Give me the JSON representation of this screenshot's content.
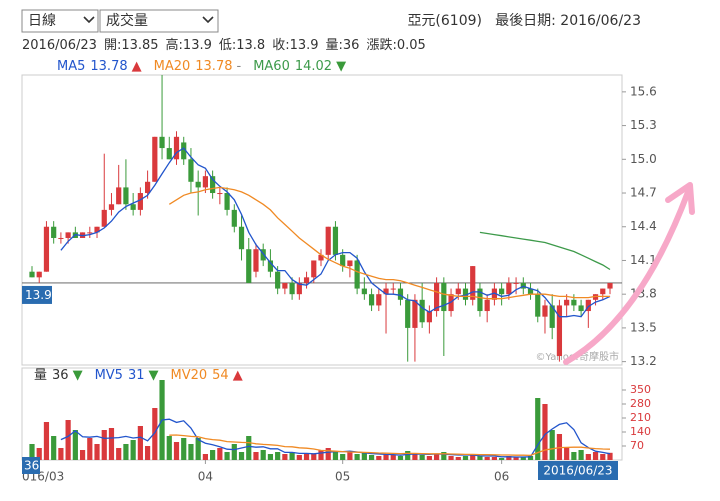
{
  "toolbar": {
    "period": "日線",
    "indicator": "成交量",
    "stock": "亞元(6109)",
    "last_date": "最後日期: 2016/06/23"
  },
  "info": {
    "date": "2016/06/23",
    "items": [
      "開:13.85",
      "高:13.9",
      "低:13.8",
      "收:13.9",
      "量:36",
      "漲跌:0.05"
    ]
  },
  "chart_data": [
    {
      "type": "candlestick",
      "up_color": "#d9393c",
      "down_color": "#3a9a3a",
      "ylim": [
        13.17,
        15.75
      ],
      "yticks": [
        15.6,
        15.3,
        {
          "value": 15,
          "label": "15.0"
        },
        14.7,
        14.4,
        14.1,
        13.8,
        13.5,
        13.2
      ],
      "price_line": 13.9,
      "watermark": "©Yahoo!奇摩股市",
      "open": [
        14.0,
        13.95,
        14.0,
        14.4,
        14.3,
        14.3,
        14.35,
        14.3,
        14.35,
        14.35,
        14.4,
        14.55,
        14.6,
        14.75,
        14.6,
        14.55,
        14.7,
        14.8,
        15.2,
        15.1,
        15.0,
        15.15,
        15.0,
        14.8,
        14.75,
        14.85,
        14.7,
        14.7,
        14.55,
        14.4,
        14.2,
        14.0,
        14.2,
        14.1,
        14.0,
        13.85,
        13.9,
        13.8,
        13.9,
        13.95,
        14.1,
        14.15,
        14.4,
        14.15,
        14.05,
        14.1,
        13.85,
        13.8,
        13.7,
        13.8,
        13.85,
        13.85,
        13.75,
        13.5,
        13.75,
        13.55,
        13.65,
        13.9,
        13.65,
        13.8,
        13.85,
        13.75,
        13.85,
        13.65,
        13.75,
        13.85,
        13.8,
        13.9,
        13.9,
        13.85,
        13.8,
        13.6,
        13.7,
        13.25,
        13.7,
        13.75,
        13.7,
        13.65,
        13.75,
        13.8,
        13.85
      ],
      "high": [
        14.05,
        14.0,
        14.45,
        14.45,
        14.35,
        14.35,
        14.4,
        14.35,
        14.4,
        14.4,
        15.05,
        14.7,
        14.95,
        15.0,
        14.7,
        14.75,
        14.9,
        15.2,
        15.75,
        15.2,
        15.25,
        15.2,
        15.1,
        14.9,
        14.9,
        14.9,
        14.75,
        14.75,
        14.6,
        14.5,
        14.3,
        14.25,
        14.25,
        14.2,
        14.05,
        13.9,
        13.95,
        13.95,
        14.0,
        14.1,
        14.2,
        14.4,
        14.45,
        14.2,
        14.1,
        14.15,
        13.95,
        13.85,
        13.85,
        13.9,
        13.9,
        13.9,
        13.8,
        13.8,
        13.9,
        13.7,
        13.95,
        13.95,
        13.85,
        13.9,
        13.9,
        14.05,
        13.9,
        13.8,
        13.9,
        13.9,
        13.95,
        13.95,
        13.95,
        13.9,
        13.85,
        13.75,
        13.8,
        13.75,
        13.8,
        13.8,
        13.75,
        13.75,
        13.8,
        13.85,
        13.9
      ],
      "low": [
        13.95,
        13.9,
        14.0,
        14.25,
        14.25,
        14.25,
        14.3,
        14.3,
        14.3,
        14.3,
        14.4,
        14.5,
        14.6,
        14.55,
        14.5,
        14.5,
        14.65,
        14.8,
        15.0,
        15.0,
        14.95,
        14.95,
        14.7,
        14.5,
        14.7,
        14.65,
        14.6,
        14.5,
        14.35,
        14.1,
        13.9,
        13.95,
        14.05,
        13.95,
        13.8,
        13.8,
        13.75,
        13.75,
        13.85,
        13.9,
        14.05,
        14.1,
        14.1,
        14.0,
        13.95,
        13.8,
        13.75,
        13.65,
        13.65,
        13.45,
        13.8,
        13.7,
        13.2,
        13.2,
        13.5,
        13.45,
        13.6,
        13.25,
        13.6,
        13.75,
        13.7,
        13.7,
        13.6,
        13.55,
        13.7,
        13.7,
        13.75,
        13.8,
        13.8,
        13.75,
        13.55,
        13.45,
        13.4,
        13.2,
        13.6,
        13.65,
        13.6,
        13.5,
        13.7,
        13.75,
        13.8
      ],
      "close": [
        13.95,
        14.0,
        14.4,
        14.3,
        14.3,
        14.35,
        14.3,
        14.35,
        14.35,
        14.4,
        14.55,
        14.6,
        14.75,
        14.6,
        14.55,
        14.7,
        14.8,
        15.2,
        15.1,
        15.0,
        15.2,
        15.0,
        14.8,
        14.75,
        14.85,
        14.7,
        14.7,
        14.55,
        14.4,
        14.2,
        13.9,
        14.2,
        14.1,
        14.0,
        13.85,
        13.9,
        13.8,
        13.9,
        13.95,
        14.1,
        14.15,
        14.4,
        14.15,
        14.05,
        14.1,
        13.85,
        13.8,
        13.7,
        13.8,
        13.85,
        13.85,
        13.75,
        13.5,
        13.75,
        13.55,
        13.65,
        13.9,
        13.65,
        13.8,
        13.85,
        13.75,
        14.05,
        13.65,
        13.75,
        13.85,
        13.8,
        13.9,
        13.9,
        13.85,
        13.8,
        13.6,
        13.7,
        13.5,
        13.7,
        13.75,
        13.7,
        13.65,
        13.75,
        13.8,
        13.85,
        13.9
      ],
      "series": [
        {
          "name": "MA5",
          "color": "#2255cc",
          "last_label": "13.78",
          "trend": "▲",
          "trend_color": "#d9393c",
          "values": [
            null,
            null,
            null,
            null,
            14.19,
            14.27,
            14.33,
            14.32,
            14.33,
            14.35,
            14.39,
            14.45,
            14.53,
            14.58,
            14.61,
            14.64,
            14.68,
            14.77,
            14.87,
            14.97,
            15.06,
            15.1,
            15.02,
            14.95,
            14.92,
            14.82,
            14.76,
            14.71,
            14.64,
            14.51,
            14.35,
            14.24,
            14.16,
            14.08,
            14.01,
            14.01,
            13.93,
            13.89,
            13.88,
            13.93,
            13.98,
            14.1,
            14.15,
            14.17,
            14.17,
            14.12,
            14.0,
            13.9,
            13.85,
            13.8,
            13.8,
            13.79,
            13.75,
            13.74,
            13.68,
            13.64,
            13.68,
            13.7,
            13.73,
            13.78,
            13.79,
            13.82,
            13.82,
            13.79,
            13.81,
            13.78,
            13.79,
            13.84,
            13.87,
            13.85,
            13.83,
            13.77,
            13.69,
            13.6,
            13.6,
            13.61,
            13.6,
            13.69,
            13.73,
            13.75,
            13.78
          ]
        },
        {
          "name": "MA20",
          "color": "#f08a24",
          "last_label": "13.78",
          "trend": "-",
          "trend_color": "#888888",
          "values": [
            null,
            null,
            null,
            null,
            null,
            null,
            null,
            null,
            null,
            null,
            null,
            null,
            null,
            null,
            null,
            null,
            null,
            null,
            null,
            14.6,
            14.64,
            14.68,
            14.7,
            14.71,
            14.73,
            14.74,
            14.75,
            14.74,
            14.73,
            14.71,
            14.68,
            14.64,
            14.6,
            14.55,
            14.48,
            14.42,
            14.36,
            14.3,
            14.25,
            14.2,
            14.15,
            14.11,
            14.08,
            14.05,
            14.03,
            14.0,
            13.98,
            13.96,
            13.94,
            13.93,
            13.93,
            13.92,
            13.9,
            13.88,
            13.86,
            13.84,
            13.82,
            13.8,
            13.79,
            13.78,
            13.78,
            13.78,
            13.77,
            13.76,
            13.76,
            13.76,
            13.77,
            13.78,
            13.79,
            13.8,
            13.8,
            13.8,
            13.79,
            13.78,
            13.78,
            13.77,
            13.77,
            13.77,
            13.78,
            13.78,
            13.78
          ]
        },
        {
          "name": "MA60",
          "color": "#3d9a4a",
          "last_label": "14.02",
          "trend": "▼",
          "trend_color": "#3a9a3a",
          "values": [
            null,
            null,
            null,
            null,
            null,
            null,
            null,
            null,
            null,
            null,
            null,
            null,
            null,
            null,
            null,
            null,
            null,
            null,
            null,
            null,
            null,
            null,
            null,
            null,
            null,
            null,
            null,
            null,
            null,
            null,
            null,
            null,
            null,
            null,
            null,
            null,
            null,
            null,
            null,
            null,
            null,
            null,
            null,
            null,
            null,
            null,
            null,
            null,
            null,
            null,
            null,
            null,
            null,
            null,
            null,
            null,
            null,
            null,
            null,
            null,
            null,
            null,
            14.35,
            14.34,
            14.33,
            14.32,
            14.31,
            14.3,
            14.29,
            14.28,
            14.27,
            14.26,
            14.24,
            14.22,
            14.2,
            14.18,
            14.15,
            14.12,
            14.09,
            14.06,
            14.02
          ]
        }
      ]
    },
    {
      "type": "bar",
      "name": "量",
      "last_label": "36",
      "trend": "▼",
      "trend_color": "#3a9a3a",
      "current_volume": 36,
      "ylim": [
        0,
        460
      ],
      "yticks": [
        70,
        140,
        210,
        280,
        350
      ],
      "categories": [
        "016/03",
        null,
        null,
        null,
        null,
        null,
        null,
        null,
        null,
        null,
        null,
        null,
        null,
        null,
        null,
        null,
        null,
        null,
        null,
        null,
        null,
        null,
        null,
        null,
        "04",
        null,
        null,
        null,
        null,
        null,
        null,
        null,
        null,
        null,
        null,
        null,
        null,
        null,
        null,
        null,
        null,
        null,
        null,
        "05",
        null,
        null,
        null,
        null,
        null,
        null,
        null,
        null,
        null,
        null,
        null,
        null,
        null,
        null,
        null,
        null,
        null,
        null,
        null,
        null,
        null,
        "06",
        null,
        null,
        null,
        null,
        null,
        null,
        null,
        null,
        null,
        null,
        null,
        null,
        null,
        null,
        "2016/06/23"
      ],
      "values": [
        80,
        60,
        190,
        120,
        60,
        200,
        150,
        50,
        110,
        80,
        150,
        160,
        60,
        80,
        100,
        170,
        70,
        260,
        400,
        120,
        90,
        110,
        80,
        110,
        30,
        50,
        60,
        40,
        80,
        40,
        120,
        40,
        50,
        30,
        40,
        30,
        40,
        25,
        30,
        30,
        50,
        60,
        40,
        30,
        40,
        30,
        35,
        25,
        20,
        30,
        25,
        20,
        45,
        30,
        25,
        20,
        30,
        40,
        20,
        15,
        20,
        30,
        20,
        15,
        15,
        10,
        20,
        15,
        15,
        20,
        310,
        280,
        150,
        130,
        60,
        40,
        50,
        30,
        40,
        30,
        36
      ],
      "series": [
        {
          "name": "MV5",
          "color": "#2255cc",
          "last_label": "31",
          "trend": "▼",
          "trend_color": "#3a9a3a",
          "values": [
            null,
            null,
            null,
            null,
            102,
            118,
            146,
            116,
            114,
            118,
            108,
            110,
            112,
            118,
            110,
            114,
            96,
            136,
            200,
            204,
            188,
            196,
            160,
            102,
            84,
            76,
            66,
            54,
            52,
            60,
            68,
            64,
            66,
            56,
            56,
            38,
            38,
            33,
            33,
            31,
            35,
            39,
            42,
            42,
            44,
            40,
            36,
            32,
            30,
            28,
            27,
            24,
            28,
            30,
            29,
            28,
            30,
            29,
            27,
            25,
            25,
            25,
            21,
            20,
            20,
            16,
            16,
            15,
            15,
            16,
            76,
            128,
            155,
            178,
            186,
            152,
            86,
            62,
            44,
            38,
            31
          ]
        },
        {
          "name": "MV20",
          "color": "#f08a24",
          "last_label": "54",
          "trend": "▲",
          "trend_color": "#d9393c",
          "values": [
            null,
            null,
            null,
            null,
            null,
            null,
            null,
            null,
            null,
            null,
            null,
            null,
            null,
            null,
            null,
            null,
            null,
            null,
            null,
            124,
            125,
            122,
            118,
            116,
            107,
            102,
            99,
            92,
            90,
            88,
            87,
            81,
            78,
            76,
            73,
            67,
            66,
            61,
            59,
            55,
            48,
            46,
            44,
            42,
            40,
            39,
            38,
            37,
            35,
            34,
            33,
            32,
            33,
            33,
            32,
            31,
            31,
            31,
            30,
            29,
            28,
            28,
            27,
            27,
            26,
            25,
            25,
            24,
            24,
            23,
            37,
            50,
            56,
            62,
            63,
            64,
            64,
            60,
            57,
            55,
            54
          ]
        }
      ]
    }
  ]
}
